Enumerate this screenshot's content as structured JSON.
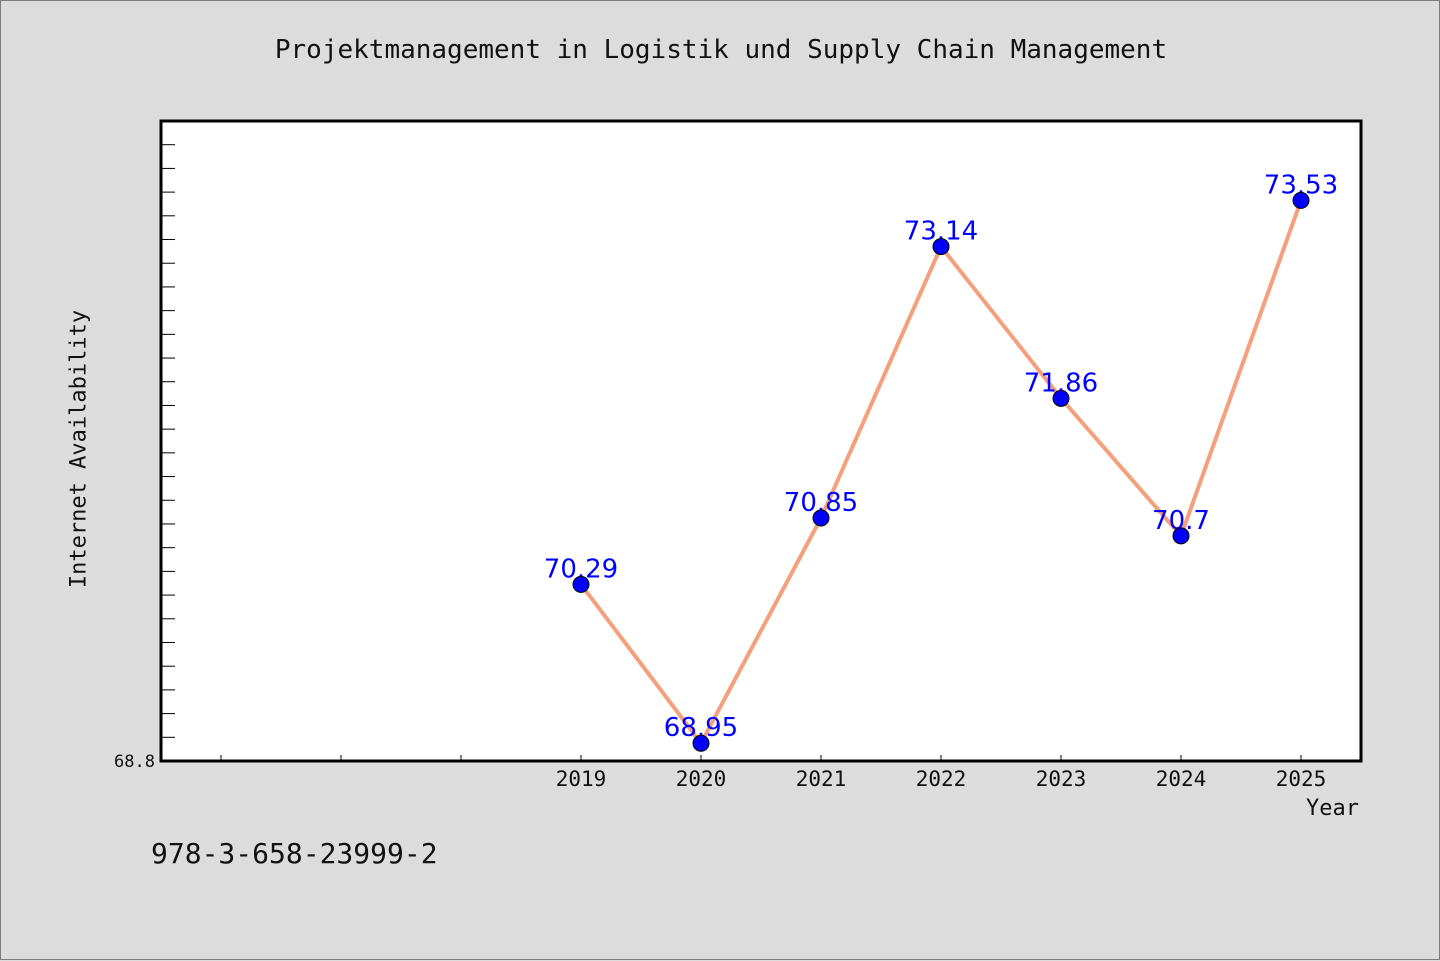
{
  "chart_data": {
    "type": "line",
    "title": "Projektmanagement in Logistik und Supply Chain Management",
    "xlabel": "Year",
    "ylabel": "Internet Availability",
    "categories": [
      "2019",
      "2020",
      "2021",
      "2022",
      "2023",
      "2024",
      "2025"
    ],
    "series": [
      {
        "values": [
          70.29,
          68.95,
          70.85,
          73.14,
          71.86,
          70.7,
          73.53
        ],
        "labels": [
          "70.29",
          "68.95",
          "70.85",
          "73.14",
          "71.86",
          "70.7",
          "73.53"
        ],
        "line_color": "#f4a07c",
        "marker_color": "#0000ff"
      }
    ],
    "ylim": [
      68.8,
      74.2
    ],
    "y_ticks_labeled": [
      "68.8"
    ],
    "label_color": "#0000ff",
    "grid": false,
    "legend": "none"
  },
  "footer_text": "978-3-658-23999-2"
}
